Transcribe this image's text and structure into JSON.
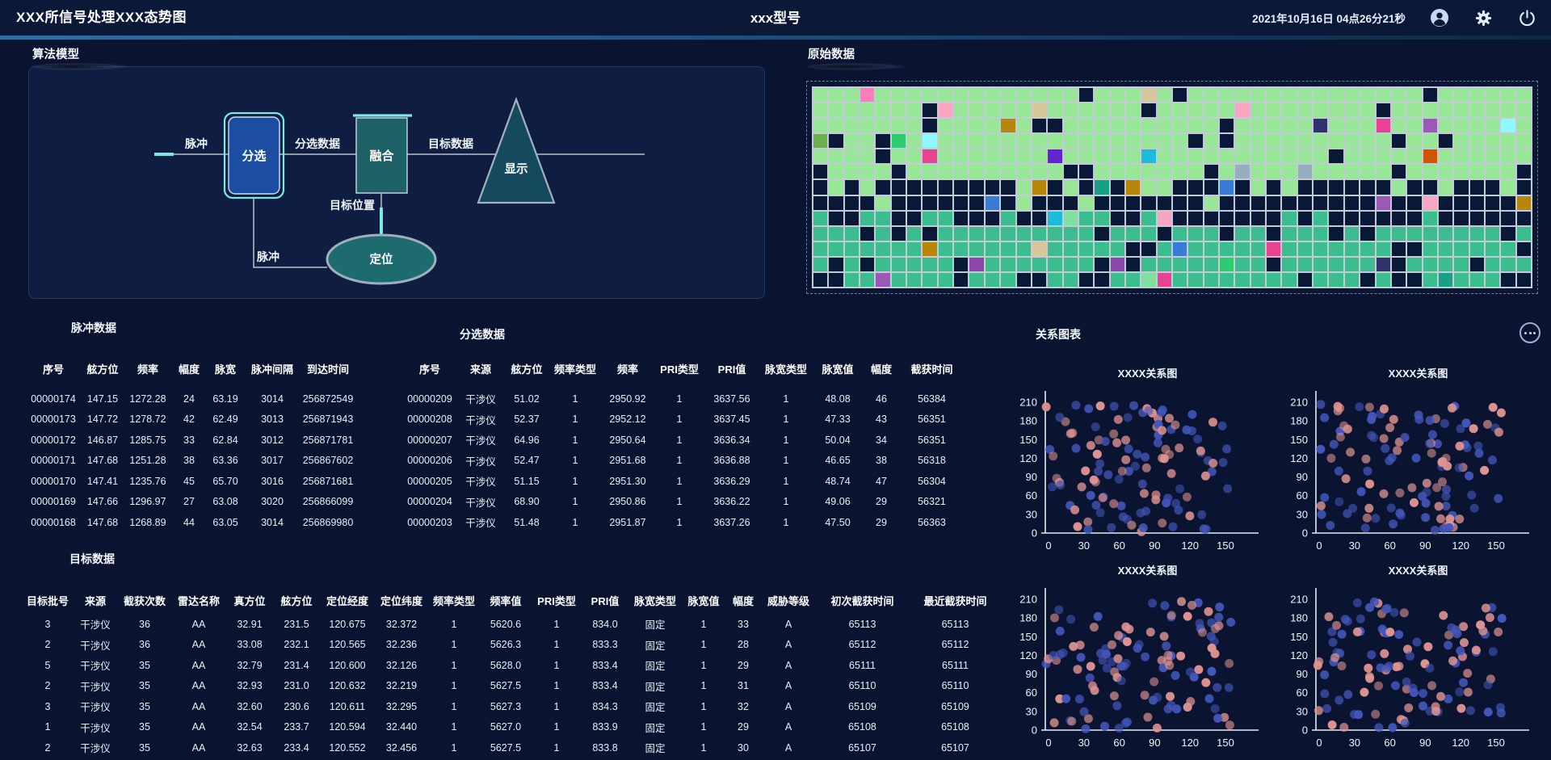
{
  "header": {
    "left_title": "XXX所信号处理XXX态势图",
    "center_title": "xxx型号",
    "datetime": "2021年10月16日 04点26分21秒",
    "icons": [
      "user",
      "settings",
      "power"
    ]
  },
  "panels": {
    "algorithm": {
      "title": "算法模型",
      "nodes": {
        "sort": "分选",
        "fuse": "融合",
        "display": "显示",
        "locate": "定位"
      },
      "labels": {
        "pulse_in": "脉冲",
        "sorted": "分选数据",
        "target": "目标数据",
        "target_pos": "目标位置",
        "pulse_loc": "脉冲"
      }
    },
    "raw": {
      "title": "原始数据",
      "grid": {
        "cols": 46,
        "rows": 13,
        "seed": 20211016,
        "colors": {
          "lg": "#98e797",
          "mg": "#3cbd90",
          "empty": "#0a1838",
          "accents": [
            "#e84393",
            "#9b59b6",
            "#3a7bd5",
            "#e67e22",
            "#f1c40f",
            "#1abcd6",
            "#e74c3c",
            "#8e44ad",
            "#2ecc71",
            "#ff7eb9",
            "#5f27cd",
            "#b33771",
            "#16a085",
            "#d35400",
            "#8ef9ff",
            "#6ab04c",
            "#f8a5c2",
            "#30336b",
            "#95afc0",
            "#b8860b",
            "#7fe0a0",
            "#d7c79a"
          ]
        },
        "rows_spec": [
          {
            "main": "lg",
            "fill": 0.94,
            "accent": 0.08
          },
          {
            "main": "lg",
            "fill": 0.94,
            "accent": 0.08
          },
          {
            "main": "lg",
            "fill": 0.92,
            "accent": 0.1
          },
          {
            "main": "lg",
            "fill": 0.92,
            "accent": 0.1
          },
          {
            "main": "lg",
            "fill": 0.9,
            "accent": 0.1
          },
          {
            "main": "lg",
            "fill": 0.8,
            "accent": 0.1
          },
          {
            "main": "lg",
            "fill": 0.3,
            "accent": 0.3
          },
          {
            "main": "lg",
            "fill": 0.13,
            "accent": 0.4
          },
          {
            "main": "mg",
            "fill": 0.3,
            "accent": 0.25
          },
          {
            "main": "mg",
            "fill": 0.88,
            "accent": 0.09
          },
          {
            "main": "mg",
            "fill": 0.88,
            "accent": 0.09
          },
          {
            "main": "mg",
            "fill": 0.86,
            "accent": 0.1
          },
          {
            "main": "mg",
            "fill": 0.72,
            "accent": 0.12
          }
        ]
      }
    }
  },
  "tables": {
    "pulse": {
      "title": "脉冲数据",
      "columns": [
        "序号",
        "舷方位",
        "频率",
        "幅度",
        "脉宽",
        "脉冲间隔",
        "到达时间"
      ],
      "rows": [
        [
          "00000174",
          "147.15",
          "1272.28",
          "24",
          "63.19",
          "3014",
          "256872549"
        ],
        [
          "00000173",
          "147.72",
          "1278.72",
          "42",
          "62.49",
          "3013",
          "256871943"
        ],
        [
          "00000172",
          "146.87",
          "1285.75",
          "33",
          "62.84",
          "3012",
          "256871781"
        ],
        [
          "00000171",
          "147.68",
          "1251.28",
          "38",
          "63.36",
          "3017",
          "256867602"
        ],
        [
          "00000170",
          "147.41",
          "1235.76",
          "45",
          "65.70",
          "3016",
          "256871681"
        ],
        [
          "00000169",
          "147.66",
          "1296.97",
          "27",
          "63.08",
          "3020",
          "256866099"
        ],
        [
          "00000168",
          "147.68",
          "1268.89",
          "44",
          "63.05",
          "3014",
          "256869980"
        ]
      ]
    },
    "sorted": {
      "title": "分选数据",
      "columns": [
        "序号",
        "来源",
        "舷方位",
        "频率类型",
        "频率",
        "PRI类型",
        "PRI值",
        "脉宽类型",
        "脉宽值",
        "幅度",
        "截获时间"
      ],
      "rows": [
        [
          "00000209",
          "干涉仪",
          "51.02",
          "1",
          "2950.92",
          "1",
          "3637.56",
          "1",
          "48.08",
          "46",
          "56384"
        ],
        [
          "00000208",
          "干涉仪",
          "52.37",
          "1",
          "2952.12",
          "1",
          "3637.45",
          "1",
          "47.33",
          "43",
          "56351"
        ],
        [
          "00000207",
          "干涉仪",
          "64.96",
          "1",
          "2950.64",
          "1",
          "3636.34",
          "1",
          "50.04",
          "34",
          "56351"
        ],
        [
          "00000206",
          "干涉仪",
          "52.47",
          "1",
          "2951.68",
          "1",
          "3636.88",
          "1",
          "46.65",
          "38",
          "56318"
        ],
        [
          "00000205",
          "干涉仪",
          "51.15",
          "1",
          "2951.30",
          "1",
          "3636.29",
          "1",
          "48.74",
          "47",
          "56304"
        ],
        [
          "00000204",
          "干涉仪",
          "68.90",
          "1",
          "2950.86",
          "1",
          "3636.22",
          "1",
          "49.06",
          "29",
          "56321"
        ],
        [
          "00000203",
          "干涉仪",
          "51.48",
          "1",
          "2951.87",
          "1",
          "3637.26",
          "1",
          "47.50",
          "29",
          "56363"
        ]
      ]
    },
    "target": {
      "title": "目标数据",
      "columns": [
        "目标批号",
        "来源",
        "截获次数",
        "雷达名称",
        "真方位",
        "舷方位",
        "定位经度",
        "定位纬度",
        "频率类型",
        "频率值",
        "PRI类型",
        "PRI值",
        "脉宽类型",
        "脉宽值",
        "幅度",
        "威胁等级",
        "初次截获时间",
        "最近截获时间"
      ],
      "rows": [
        [
          "3",
          "干涉仪",
          "36",
          "AA",
          "32.91",
          "231.5",
          "120.675",
          "32.372",
          "1",
          "5620.6",
          "1",
          "834.0",
          "固定",
          "1",
          "33",
          "A",
          "65113",
          "65113"
        ],
        [
          "2",
          "干涉仪",
          "36",
          "AA",
          "33.08",
          "232.1",
          "120.565",
          "32.236",
          "1",
          "5626.3",
          "1",
          "833.3",
          "固定",
          "1",
          "28",
          "A",
          "65112",
          "65112"
        ],
        [
          "5",
          "干涉仪",
          "35",
          "AA",
          "32.79",
          "231.4",
          "120.600",
          "32.126",
          "1",
          "5628.0",
          "1",
          "833.4",
          "固定",
          "1",
          "29",
          "A",
          "65111",
          "65111"
        ],
        [
          "2",
          "干涉仪",
          "35",
          "AA",
          "32.93",
          "231.0",
          "120.632",
          "32.219",
          "1",
          "5627.5",
          "1",
          "833.4",
          "固定",
          "1",
          "31",
          "A",
          "65110",
          "65110"
        ],
        [
          "3",
          "干涉仪",
          "35",
          "AA",
          "32.60",
          "230.6",
          "120.611",
          "32.295",
          "1",
          "5627.3",
          "1",
          "834.3",
          "固定",
          "1",
          "32",
          "A",
          "65109",
          "65109"
        ],
        [
          "1",
          "干涉仪",
          "35",
          "AA",
          "32.54",
          "233.7",
          "120.594",
          "32.440",
          "1",
          "5627.0",
          "1",
          "833.9",
          "固定",
          "1",
          "29",
          "A",
          "65108",
          "65108"
        ],
        [
          "2",
          "干涉仪",
          "35",
          "AA",
          "32.63",
          "233.4",
          "120.552",
          "32.456",
          "1",
          "5627.5",
          "1",
          "833.8",
          "固定",
          "1",
          "30",
          "A",
          "65107",
          "65107"
        ]
      ]
    }
  },
  "charts": {
    "title": "关系图表",
    "more_button": "...",
    "items": [
      {
        "title": "XXXX关系图"
      },
      {
        "title": "XXXX关系图"
      },
      {
        "title": "XXXX关系图"
      },
      {
        "title": "XXXX关系图"
      }
    ],
    "chart_data": {
      "type": "scatter",
      "y_ticks": [
        210,
        180,
        150,
        120,
        90,
        60,
        30,
        0
      ],
      "x_ticks": [
        0,
        30,
        60,
        90,
        120,
        150
      ],
      "x_range": [
        0,
        158
      ],
      "y_range": [
        2,
        208
      ],
      "series": [
        {
          "name": "pink",
          "color": "#df9390",
          "count": 52
        },
        {
          "name": "blue",
          "color": "#4356ba",
          "count": 64
        }
      ],
      "seeds": [
        101,
        202,
        303,
        404
      ],
      "point_radius": 5.5
    }
  },
  "colors": {
    "page_bg": "#0a1430",
    "header_bg": "#0c1838",
    "panel_bg": "#0e1d41",
    "node_sort": "#1b4da0",
    "node_fuse": "#1d6066",
    "node_display": "#154a5e",
    "node_locate": "#1e6b6f",
    "cyan_accent": "#7be9e1",
    "scatter_pink": "#df9390",
    "scatter_blue": "#4356ba"
  }
}
